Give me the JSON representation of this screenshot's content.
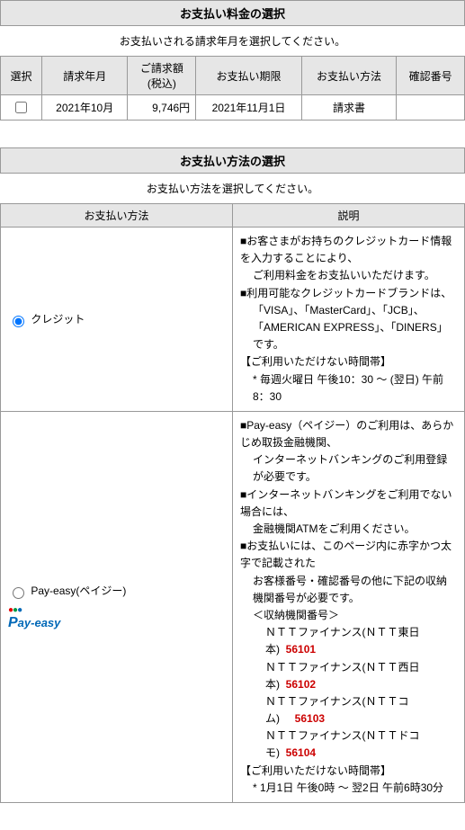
{
  "billing": {
    "title": "お支払い料金の選択",
    "subtitle": "お支払いされる請求年月を選択してください。",
    "headers": {
      "select": "選択",
      "period": "請求年月",
      "amount_line1": "ご請求額",
      "amount_line2": "(税込)",
      "due": "お支払い期限",
      "method": "お支払い方法",
      "confirm": "確認番号"
    },
    "row": {
      "period": "2021年10月",
      "amount": "9,746円",
      "due": "2021年11月1日",
      "method": "請求書",
      "confirm": ""
    }
  },
  "methods": {
    "title": "お支払い方法の選択",
    "subtitle": "お支払い方法を選択してください。",
    "headers": {
      "method": "お支払い方法",
      "desc": "説明"
    },
    "credit": {
      "label": "クレジット",
      "l1": "■お客さまがお持ちのクレジットカード情報を入力することにより、",
      "l2": "ご利用料金をお支払いいただけます。",
      "l3": "■利用可能なクレジットカードブランドは、",
      "l4": "「VISA」、「MasterCard」、「JCB」、",
      "l5": "「AMERICAN EXPRESS」、「DINERS」です。",
      "l6": "【ご利用いただけない時間帯】",
      "l7": "* 毎週火曜日 午後10：30 ～ (翌日) 午前8：30"
    },
    "payeasy": {
      "label": "Pay-easy(ペイジー)",
      "l1": "■Pay-easy（ペイジー）のご利用は、あらかじめ取扱金融機関、",
      "l2": "インターネットバンキングのご利用登録が必要です。",
      "l3": "■インターネットバンキングをご利用でない場合には、",
      "l4": "金融機関ATMをご利用ください。",
      "l5": "■お支払いには、このページ内に赤字かつ太字で記載された",
      "l6": "お客様番号・確認番号の他に下記の収納機関番号が必要です。",
      "l7": "＜収納機関番号＞",
      "orgs": [
        {
          "name": "ＮＴＴファイナンス(ＮＴＴ東日本)",
          "code": "56101"
        },
        {
          "name": "ＮＴＴファイナンス(ＮＴＴ西日本)",
          "code": "56102"
        },
        {
          "name": "ＮＴＴファイナンス(ＮＴＴコム)",
          "code": "56103"
        },
        {
          "name": "ＮＴＴファイナンス(ＮＴＴドコモ)",
          "code": "56104"
        }
      ],
      "l8": "【ご利用いただけない時間帯】",
      "l9": "* 1月1日 午後0時 ～ 翌2日 午前6時30分"
    }
  }
}
